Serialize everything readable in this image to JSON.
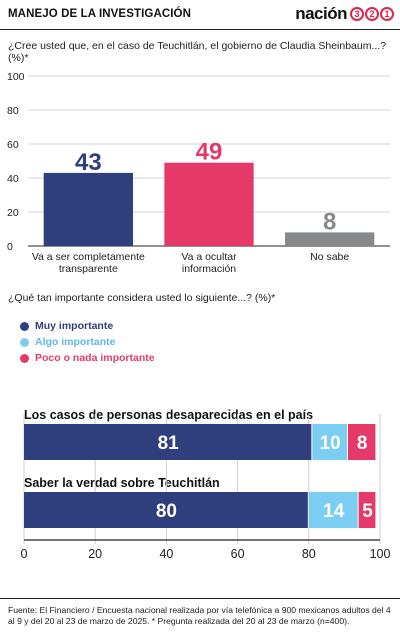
{
  "header": {
    "title": "MANEJO DE LA INVESTIGACIÓN",
    "brand_word": "nación",
    "brand_digits": [
      "3",
      "2",
      "1"
    ]
  },
  "question1": "¿Cree usted que, en el caso de Teuchitlán, el gobierno de Claudia Sheinbaum...? (%)*",
  "question2": "¿Qué tan importante considera usted lo siguiente...? (%)*",
  "colors": {
    "navy": "#2f3e7d",
    "pink": "#e53a69",
    "gray": "#86888a",
    "light_blue": "#7ccdf2"
  },
  "legend": [
    {
      "label": "Muy importante",
      "color": "#2f3e7d"
    },
    {
      "label": "Algo importante",
      "color": "#7ccdf2"
    },
    {
      "label": "Poco o nada importante",
      "color": "#e53a69"
    }
  ],
  "source": "Fuente: El Financiero /  Encuesta nacional realizada por vía telefónica a 900 mexicanos adultos del 4 al 9 y del 20 al 23 de marzo de 2025. * Pregunta realizada del 20 al 23 de marzo (n=400).",
  "chart_data": [
    {
      "type": "bar",
      "categories": [
        [
          "Va a ser completamente",
          "transparente"
        ],
        [
          "Va a ocultar",
          "información"
        ],
        [
          "No sabe"
        ]
      ],
      "values": [
        43,
        49,
        8
      ],
      "colors": [
        "#2f3e7d",
        "#e53a69",
        "#86888a"
      ],
      "yticks": [
        0,
        20,
        40,
        60,
        80,
        100
      ],
      "ylim": [
        0,
        100
      ],
      "grid": true
    },
    {
      "type": "bar",
      "orientation": "horizontal",
      "stacked": true,
      "categories": [
        "Los casos de personas desaparecidas en el país",
        "Saber la verdad sobre Teuchitlán"
      ],
      "series": [
        {
          "name": "Muy importante",
          "values": [
            81,
            80
          ],
          "color": "#2f3e7d"
        },
        {
          "name": "Algo importante",
          "values": [
            10,
            14
          ],
          "color": "#7ccdf2"
        },
        {
          "name": "Poco o nada importante",
          "values": [
            8,
            5
          ],
          "color": "#e53a69"
        }
      ],
      "xticks": [
        0,
        20,
        40,
        60,
        80,
        100
      ],
      "xlim": [
        0,
        100
      ],
      "grid": true
    }
  ]
}
